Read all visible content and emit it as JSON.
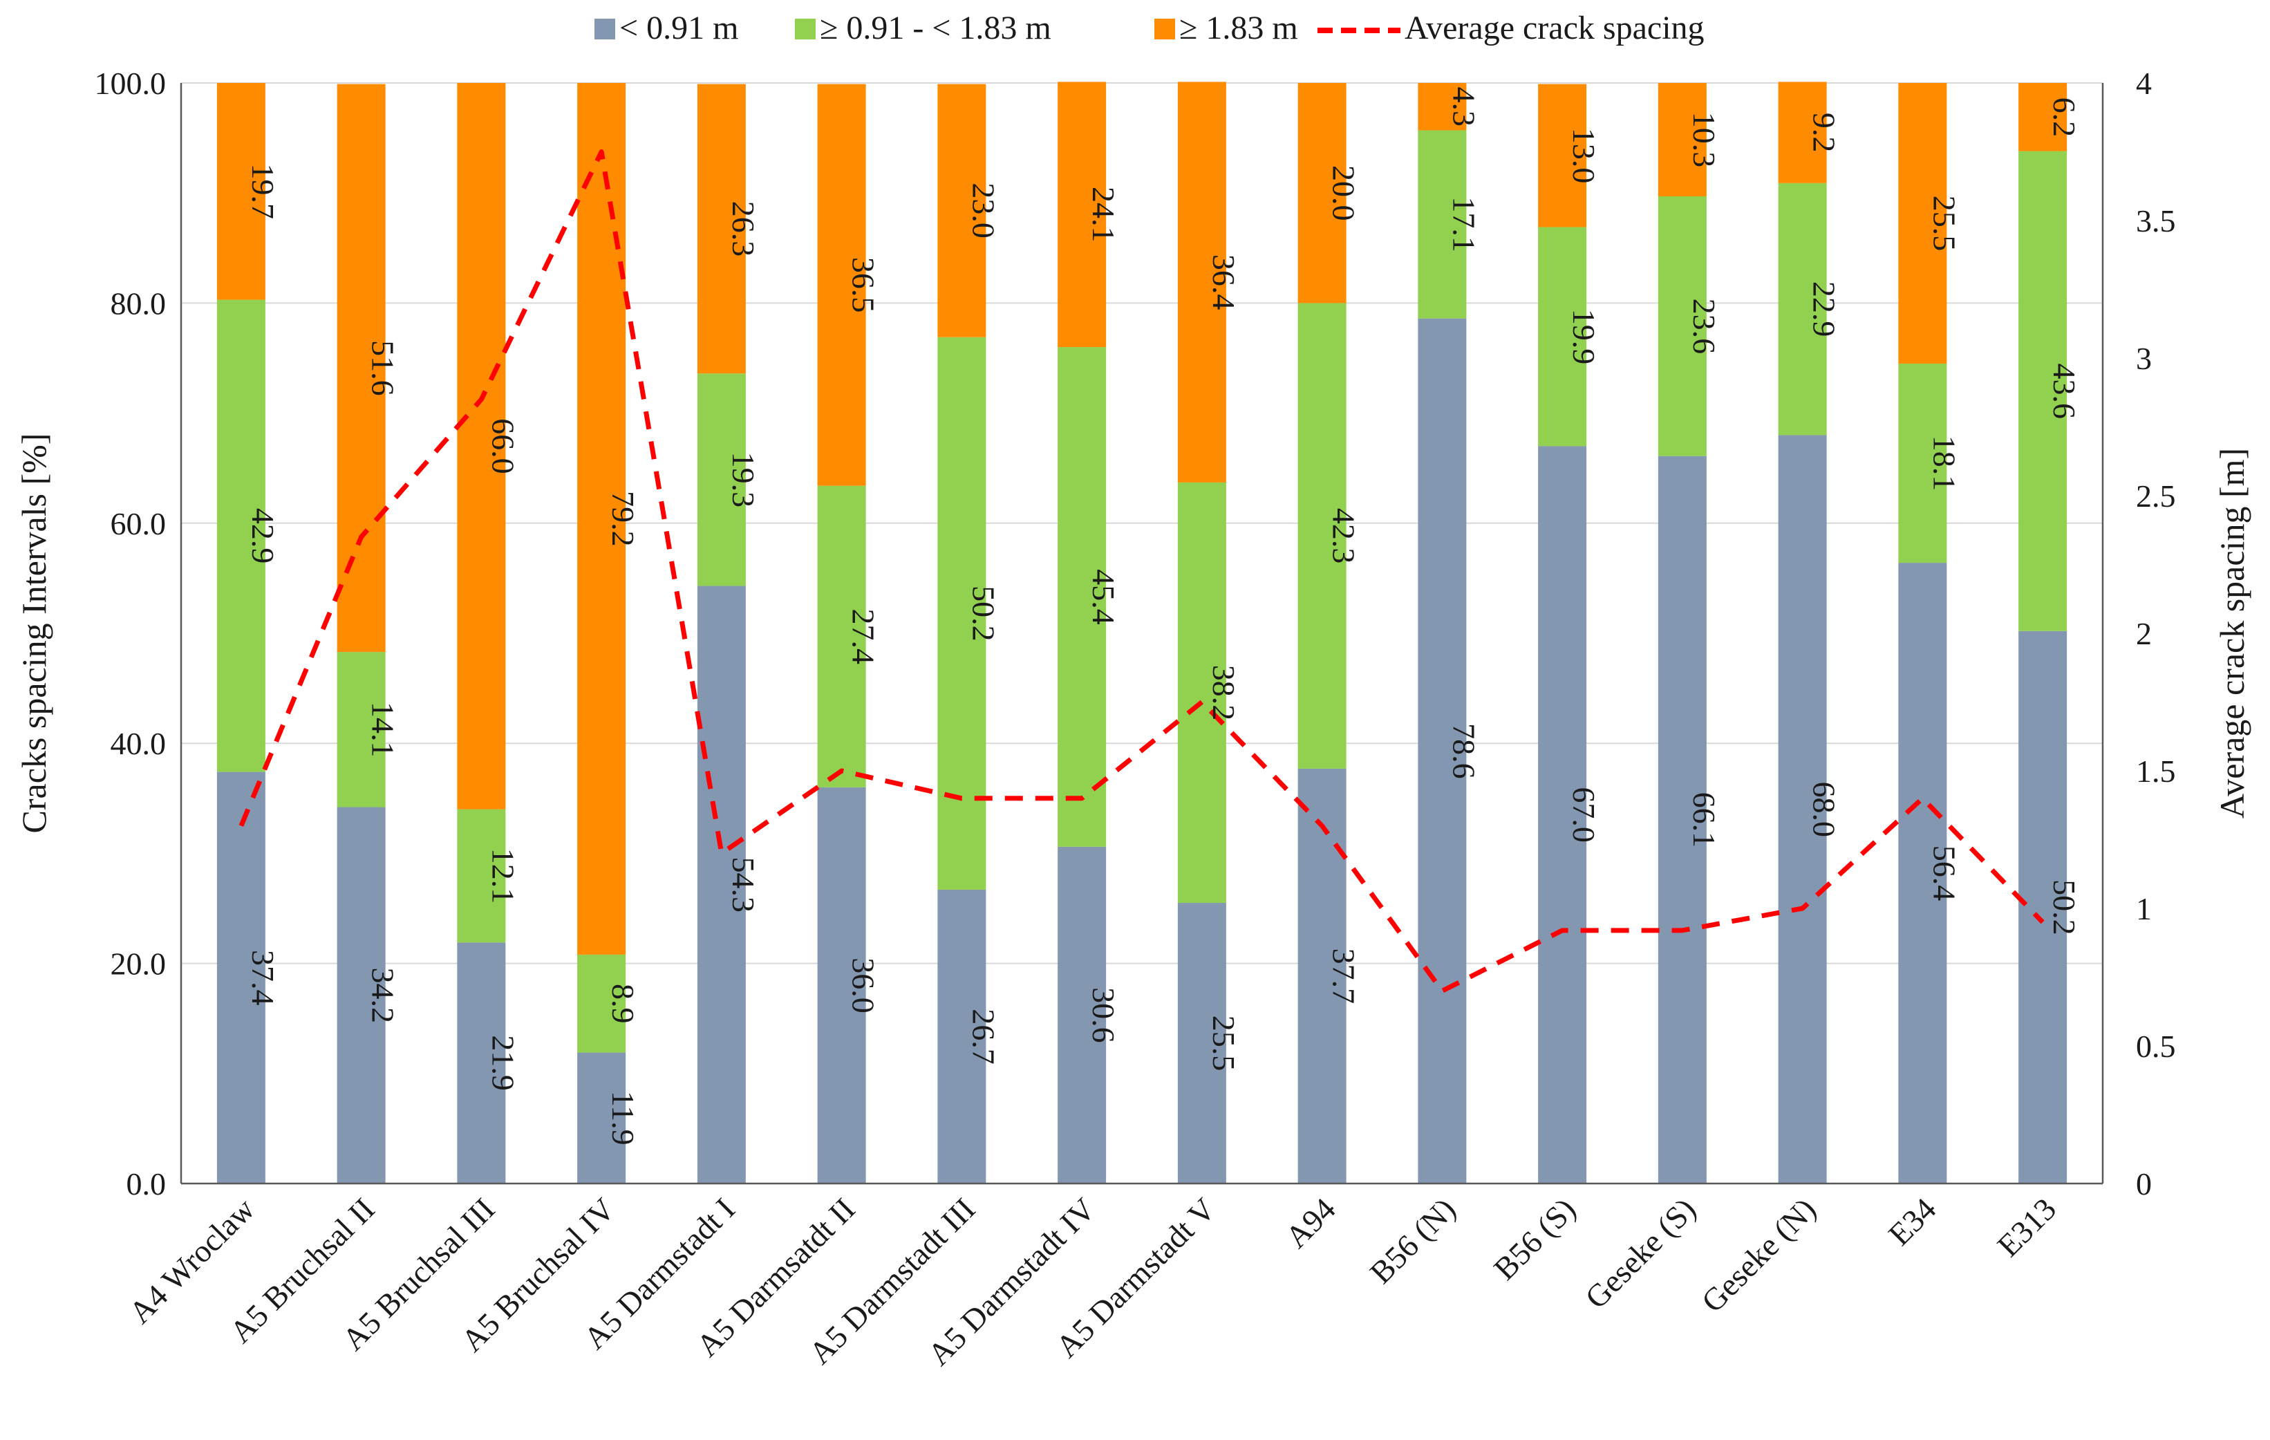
{
  "chart_data": {
    "type": "bar",
    "stacked": true,
    "categories": [
      "A4 Wroclaw",
      "A5 Bruchsal II",
      "A5 Bruchsal III",
      "A5 Bruchsal IV",
      "A5 Darmstadt I",
      "A5 Darmsatdt II",
      "A5 Darmstadt III",
      "A5 Darmstadt IV",
      "A5 Darmstadt V",
      "A94",
      "B56 (N)",
      "B56 (S)",
      "Geseke (S)",
      "Geseke (N)",
      "E34",
      "E313"
    ],
    "series": [
      {
        "name": "< 0.91 m",
        "color": "#8497b0",
        "values": [
          37.4,
          34.2,
          21.9,
          11.9,
          54.3,
          36.0,
          26.7,
          30.6,
          25.5,
          37.7,
          78.6,
          67.0,
          66.1,
          68.0,
          56.4,
          50.2
        ],
        "labels": [
          "37.4",
          "34.2",
          "21.9",
          "11.9",
          "54.3",
          "36.0",
          "26.7",
          "30.6",
          "25.5",
          "37.7",
          "78.6",
          "67.0",
          "66.1",
          "68.0",
          "56.4",
          "50.2"
        ]
      },
      {
        "name": "≥ 0.91 - < 1.83 m",
        "color": "#92d050",
        "values": [
          42.9,
          14.1,
          12.1,
          8.9,
          19.3,
          27.4,
          50.2,
          45.4,
          38.2,
          42.3,
          17.1,
          19.9,
          23.6,
          22.9,
          18.1,
          43.6
        ],
        "labels": [
          "42.9",
          "14.1",
          "12.1",
          "8.9",
          "19.3",
          "27.4",
          "50.2",
          "45.4",
          "38.2",
          "42.3",
          "17.1",
          "19.9",
          "23.6",
          "22.9",
          "18.1",
          "43.6"
        ]
      },
      {
        "name": "≥ 1.83 m",
        "color": "#ff8c00",
        "values": [
          19.7,
          51.6,
          66.0,
          79.2,
          26.3,
          36.5,
          23.0,
          24.1,
          36.4,
          20.0,
          4.3,
          13.0,
          10.3,
          9.2,
          25.5,
          6.2
        ],
        "labels": [
          "19.7",
          "51.6",
          "66.0",
          "79.2",
          "26.3",
          "36.5",
          "23.0",
          "24.1",
          "36.4",
          "20.0",
          "4.3",
          "13.0",
          "10.3",
          "9.2",
          "25.5",
          "6.2"
        ]
      }
    ],
    "line_series": {
      "name": "Average crack spacing",
      "color": "#ff0000",
      "axis": "right",
      "values": [
        1.3,
        2.35,
        2.85,
        3.75,
        1.2,
        1.5,
        1.4,
        1.4,
        1.75,
        1.3,
        0.7,
        0.92,
        0.92,
        1.0,
        1.4,
        0.95
      ]
    },
    "ylabel": "Cracks spacing Intervals [%]",
    "y2label": "Average crack spacing [m]",
    "ylim": [
      0,
      100
    ],
    "y2lim": [
      0,
      4
    ],
    "yticks": [
      "0.0",
      "20.0",
      "40.0",
      "60.0",
      "80.0",
      "100.0"
    ],
    "y2ticks": [
      "0",
      "0.5",
      "1",
      "1.5",
      "2",
      "2.5",
      "3",
      "3.5",
      "4"
    ],
    "grid": true,
    "legend_position": "top"
  }
}
